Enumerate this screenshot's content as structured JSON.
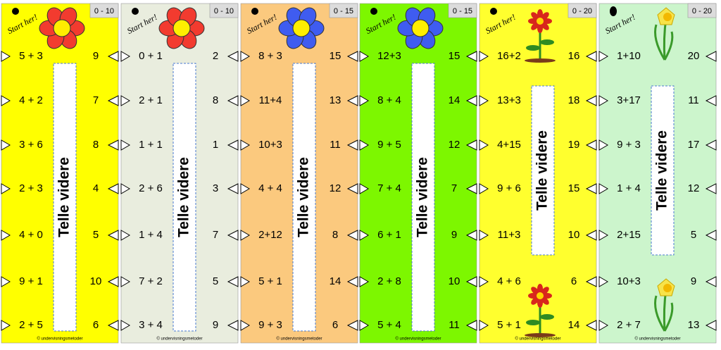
{
  "cards": [
    {
      "range": "0 - 10",
      "start": "Start her!",
      "strip": "Telle videre",
      "footer": "© undervisningsmetoder",
      "rows": [
        [
          "5 + 3",
          "9"
        ],
        [
          "4 + 2",
          "7"
        ],
        [
          "3 + 6",
          "8"
        ],
        [
          "2 + 3",
          "4"
        ],
        [
          "4 + 0",
          "5"
        ],
        [
          "9 + 1",
          "10"
        ],
        [
          "2 + 5",
          "6"
        ]
      ]
    },
    {
      "range": "0 - 10",
      "start": "Start her!",
      "strip": "Telle videre",
      "footer": "© undervisningsmetoder",
      "rows": [
        [
          "0 + 1",
          "2"
        ],
        [
          "2 + 1",
          "8"
        ],
        [
          "1 + 1",
          "1"
        ],
        [
          "2 + 6",
          "3"
        ],
        [
          "1 + 4",
          "7"
        ],
        [
          "7 + 2",
          "5"
        ],
        [
          "3 + 4",
          "9"
        ]
      ]
    },
    {
      "range": "0 - 15",
      "start": "Start her!",
      "strip": "Telle videre",
      "footer": "© undervisningsmetoder",
      "rows": [
        [
          "8 + 3",
          "15"
        ],
        [
          "11+4",
          "13"
        ],
        [
          "10+3",
          "11"
        ],
        [
          "4 + 4",
          "12"
        ],
        [
          "2+12",
          "8"
        ],
        [
          "5 + 1",
          "14"
        ],
        [
          "9 + 3",
          "6"
        ]
      ]
    },
    {
      "range": "0 - 15",
      "start": "Start her!",
      "strip": "Telle videre",
      "footer": "© undervisningsmetoder",
      "rows": [
        [
          "12+3",
          "15"
        ],
        [
          "8 + 4",
          "14"
        ],
        [
          "9 + 5",
          "12"
        ],
        [
          "7 + 4",
          "7"
        ],
        [
          "6 + 1",
          "9"
        ],
        [
          "2 + 8",
          "10"
        ],
        [
          "5 + 4",
          "11"
        ]
      ]
    },
    {
      "range": "0 - 20",
      "start": "Start her!",
      "strip": "Telle videre",
      "footer": "© undervisningsmetoder",
      "rows": [
        [
          "16+2",
          "16"
        ],
        [
          "13+3",
          "18"
        ],
        [
          "4+15",
          "19"
        ],
        [
          "9 + 6",
          "15"
        ],
        [
          "11+3",
          "10"
        ],
        [
          "4 + 6",
          "6"
        ],
        [
          "5 + 1",
          "14"
        ]
      ]
    },
    {
      "range": "0 - 20",
      "start": "Start her!",
      "strip": "Telle videre",
      "footer": "© undervisningsmetoder",
      "rows": [
        [
          "1+10",
          "20"
        ],
        [
          "3+17",
          "11"
        ],
        [
          "9 + 3",
          "17"
        ],
        [
          "1 + 4",
          "12"
        ],
        [
          "2+15",
          "5"
        ],
        [
          "10+3",
          "9"
        ],
        [
          "2 + 7",
          "13"
        ]
      ]
    }
  ]
}
